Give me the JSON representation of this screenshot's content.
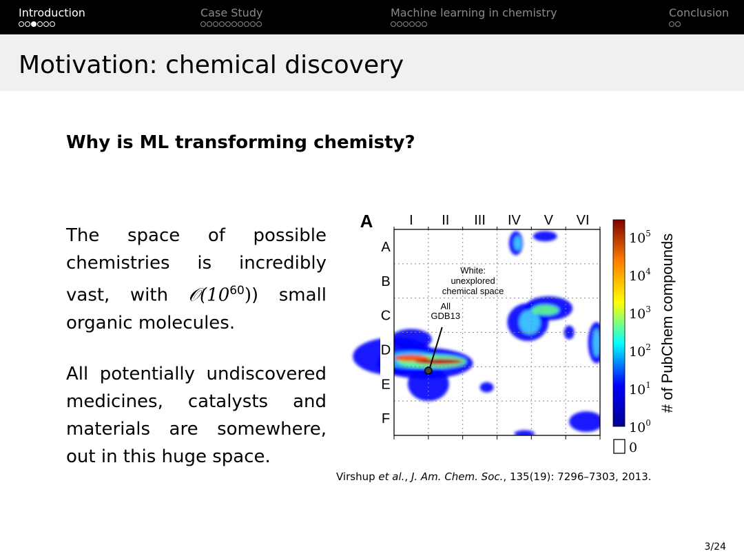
{
  "nav": {
    "sections": [
      {
        "label": "Introduction",
        "dots": 6,
        "current": 3,
        "active": true
      },
      {
        "label": "Case Study",
        "dots": 10,
        "current": 0,
        "active": false
      },
      {
        "label": "Machine learning in chemistry",
        "dots": 6,
        "current": 0,
        "active": false
      },
      {
        "label": "Conclusion",
        "dots": 2,
        "current": 0,
        "active": false
      }
    ]
  },
  "slide": {
    "title": "Motivation: chemical discovery",
    "question": "Why is ML transforming chemisty?",
    "para1": {
      "before": "The space of possible chemistries is incredibly vast, with ",
      "math": "𝒪(10",
      "sup": "60",
      "after": ") small organic molecules."
    },
    "para2": "All potentially undiscovered medicines, catalysts and materials are somewhere, out in this huge space.",
    "citation": {
      "authors": "Virshup ",
      "etal": "et al.",
      "sep1": ", ",
      "journal": "J. Am. Chem. Soc.",
      "rest": ", 135(19): 7296–7303, 2013."
    },
    "page": "3/24"
  },
  "figure": {
    "panel": "A",
    "columns": [
      "I",
      "II",
      "III",
      "IV",
      "V",
      "VI"
    ],
    "rows": [
      "A",
      "B",
      "C",
      "D",
      "E",
      "F"
    ],
    "annotation_white": [
      "White:",
      "unexplored",
      "chemical space"
    ],
    "annotation_gdb": [
      "All",
      "GDB13"
    ],
    "colorbar": {
      "label": "# of PubChem compounds",
      "ticks": [
        "0",
        "1",
        "2",
        "3",
        "4",
        "5"
      ],
      "zero_label": "0",
      "colors": [
        "#00008f",
        "#0000ff",
        "#00ffff",
        "#ffff00",
        "#ff7f00",
        "#800000"
      ]
    }
  }
}
